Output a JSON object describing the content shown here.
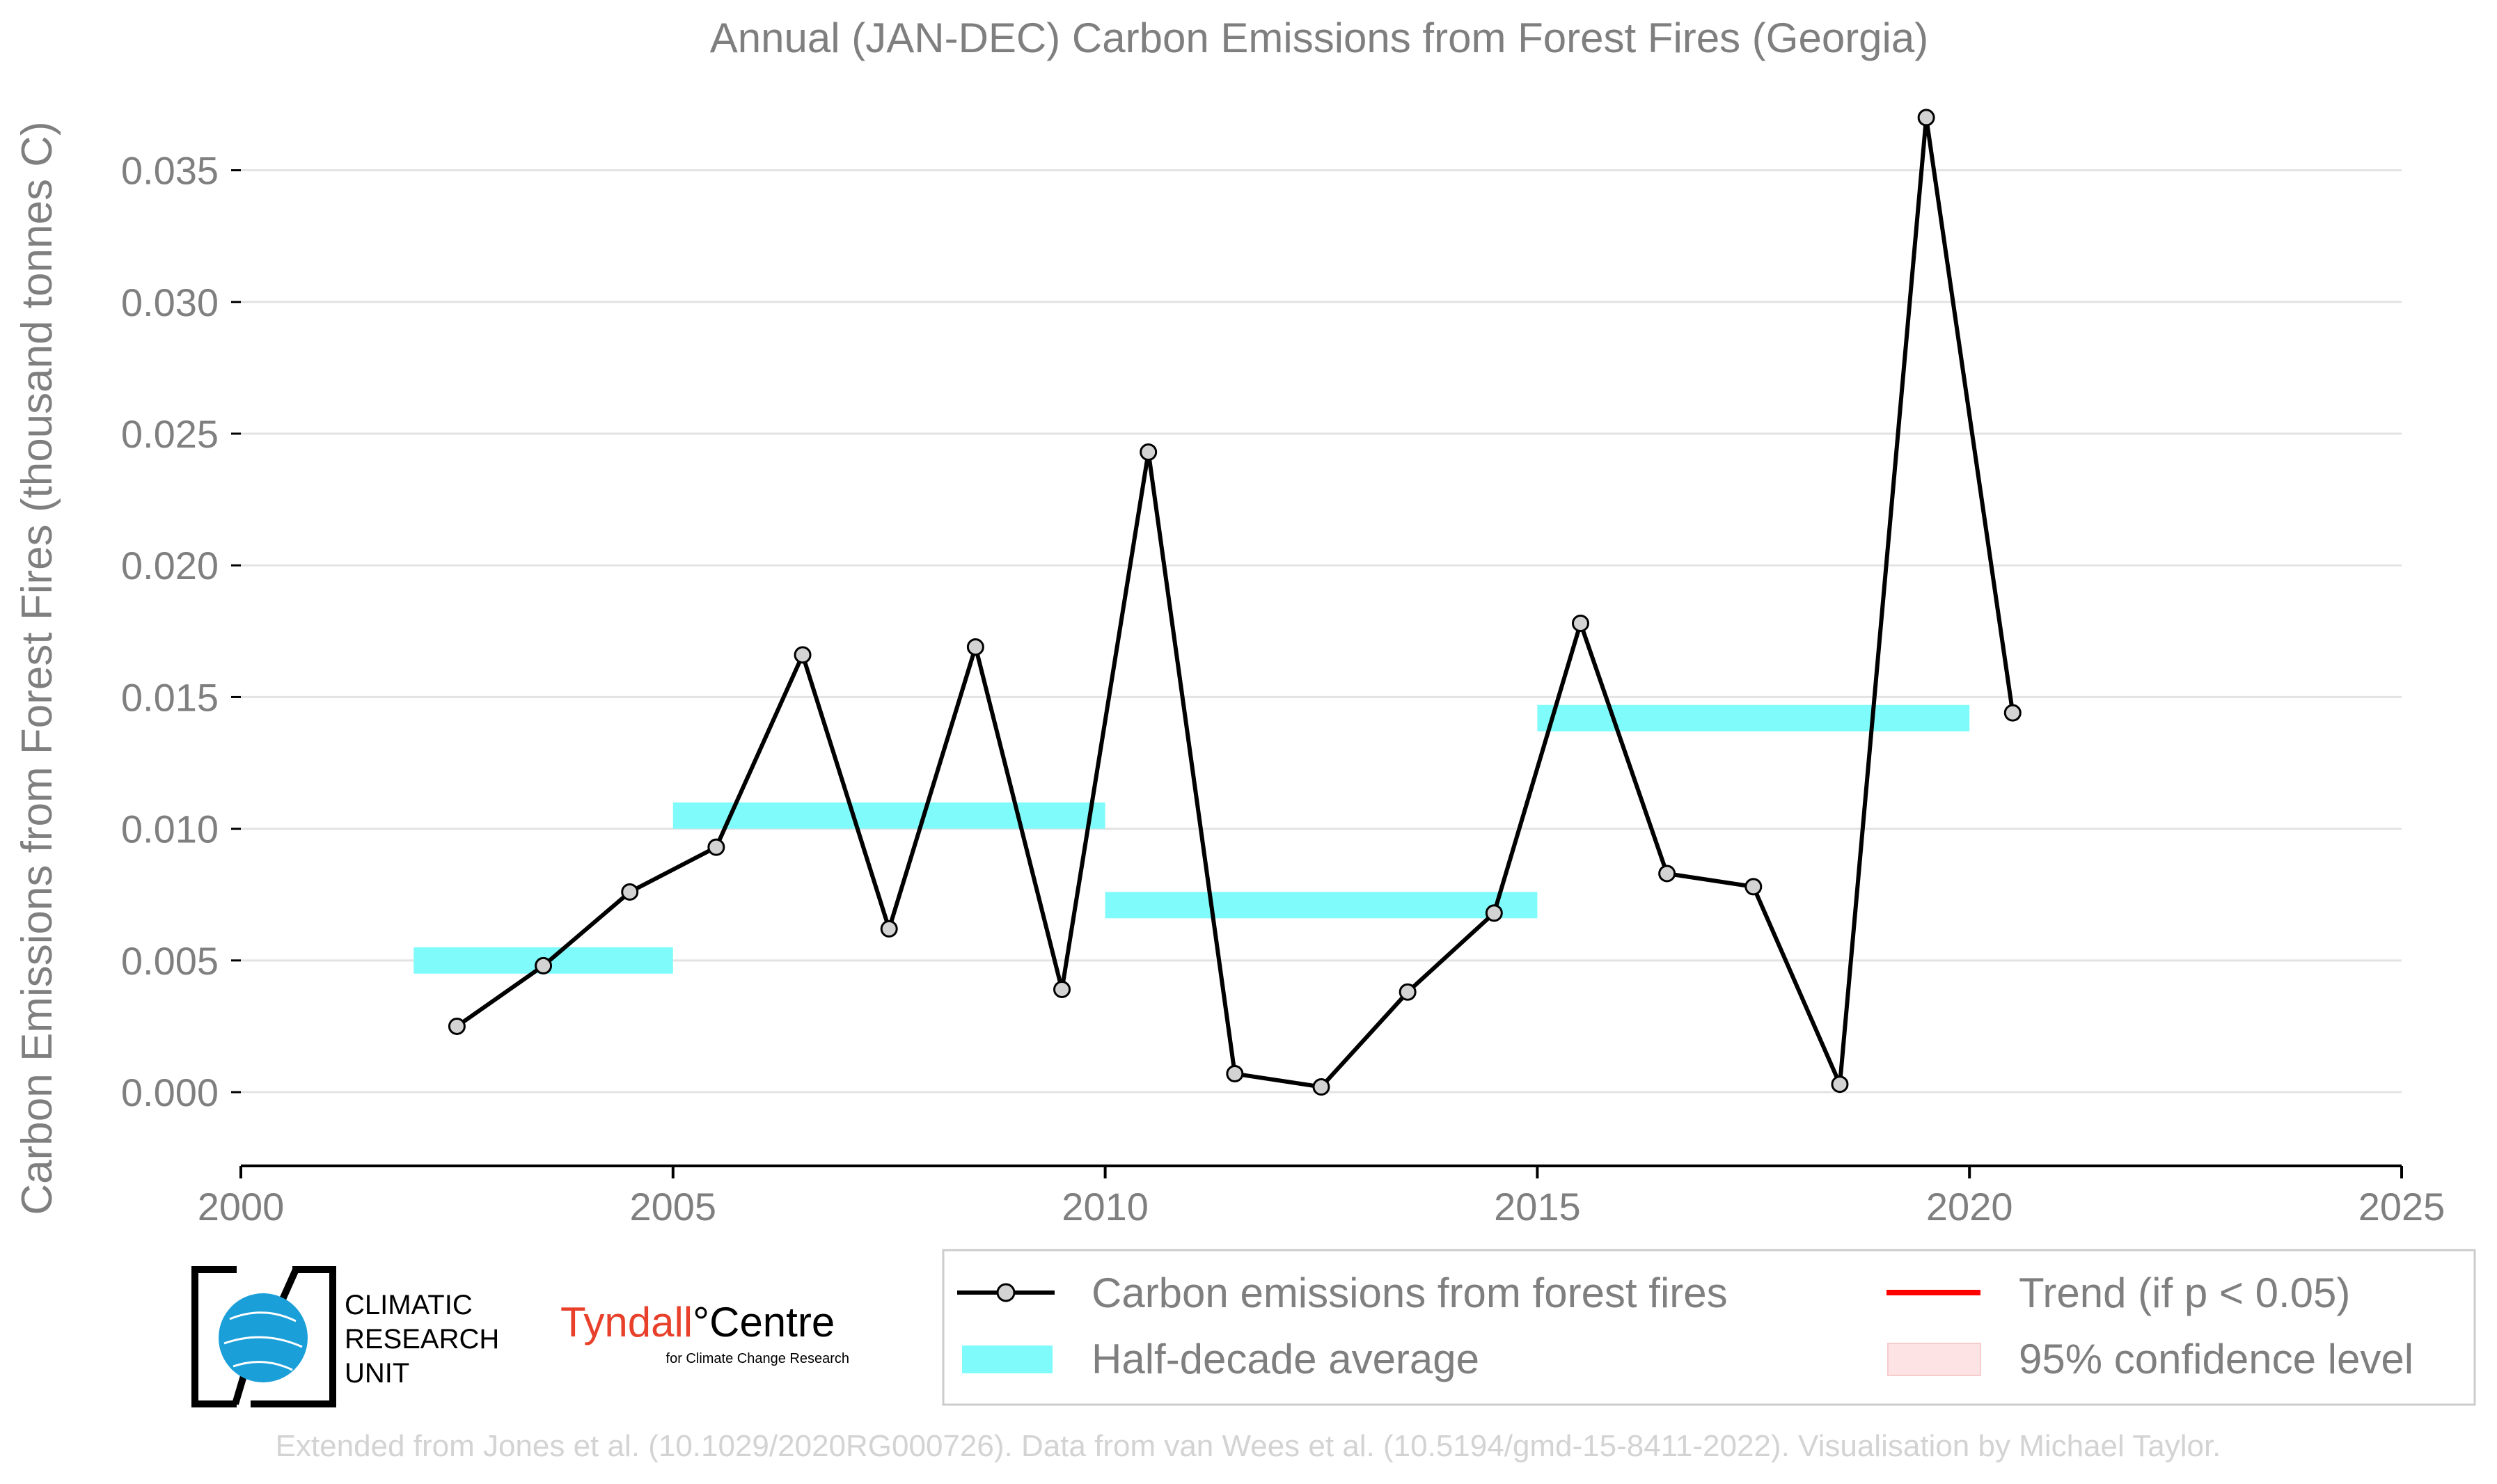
{
  "chart_data": {
    "type": "line",
    "title": "Annual (JAN-DEC) Carbon Emissions from Forest Fires (Georgia)",
    "xlabel": "",
    "ylabel": "Carbon Emissions from Forest Fires (thousand tonnes C)",
    "xlim": [
      2000,
      2025
    ],
    "ylim": [
      -0.0028,
      0.0375
    ],
    "x_ticks": [
      "2000",
      "2005",
      "2010",
      "2015",
      "2020",
      "2025"
    ],
    "x_tick_values": [
      2000,
      2005,
      2010,
      2015,
      2020,
      2025
    ],
    "y_ticks": [
      "0.000",
      "0.005",
      "0.010",
      "0.015",
      "0.020",
      "0.025",
      "0.030",
      "0.035"
    ],
    "y_tick_values": [
      0.0,
      0.005,
      0.01,
      0.015,
      0.02,
      0.025,
      0.03,
      0.035
    ],
    "grid": true,
    "legend_position": "bottom-right",
    "series": [
      {
        "name": "Carbon emissions from forest fires",
        "color": "#000000",
        "marker_fill": "#d3d3d3",
        "x": [
          2002.5,
          2003.5,
          2004.5,
          2005.5,
          2006.5,
          2007.5,
          2008.5,
          2009.5,
          2010.5,
          2011.5,
          2012.5,
          2013.5,
          2014.5,
          2015.5,
          2016.5,
          2017.5,
          2018.5,
          2019.5,
          2020.5
        ],
        "y": [
          0.0025,
          0.0048,
          0.0076,
          0.0093,
          0.0166,
          0.0062,
          0.0169,
          0.0039,
          0.0243,
          0.0007,
          0.0002,
          0.0038,
          0.0068,
          0.0178,
          0.0083,
          0.0078,
          0.0003,
          0.037,
          0.0144
        ]
      }
    ],
    "half_decade_average": {
      "name": "Half-decade average",
      "color": "#80fbfb",
      "segments": [
        {
          "x_start": 2002,
          "x_end": 2005,
          "value": 0.005
        },
        {
          "x_start": 2005,
          "x_end": 2010,
          "value": 0.0105
        },
        {
          "x_start": 2010,
          "x_end": 2015,
          "value": 0.0071
        },
        {
          "x_start": 2015,
          "x_end": 2020,
          "value": 0.0142
        }
      ]
    },
    "legend": [
      {
        "label": "Carbon emissions from forest fires",
        "kind": "line-marker",
        "color": "#000000"
      },
      {
        "label": "Half-decade average",
        "kind": "band",
        "color": "#80fbfb"
      },
      {
        "label": "Trend (if p < 0.05)",
        "kind": "line",
        "color": "#ff0000"
      },
      {
        "label": "95% confidence level",
        "kind": "patch",
        "color": "#fde3e3"
      }
    ]
  },
  "logos": {
    "cru_lines": [
      "CLIMATIC",
      "RESEARCH",
      "UNIT"
    ],
    "tyndall_main": "Tyndall",
    "tyndall_degree": "°",
    "tyndall_centre": "Centre",
    "tyndall_sub": "for Climate Change Research"
  },
  "credit": "Extended from Jones et al. (10.1029/2020RG000726). Data from van Wees et al. (10.5194/gmd-15-8411-2022). Visualisation by Michael Taylor."
}
